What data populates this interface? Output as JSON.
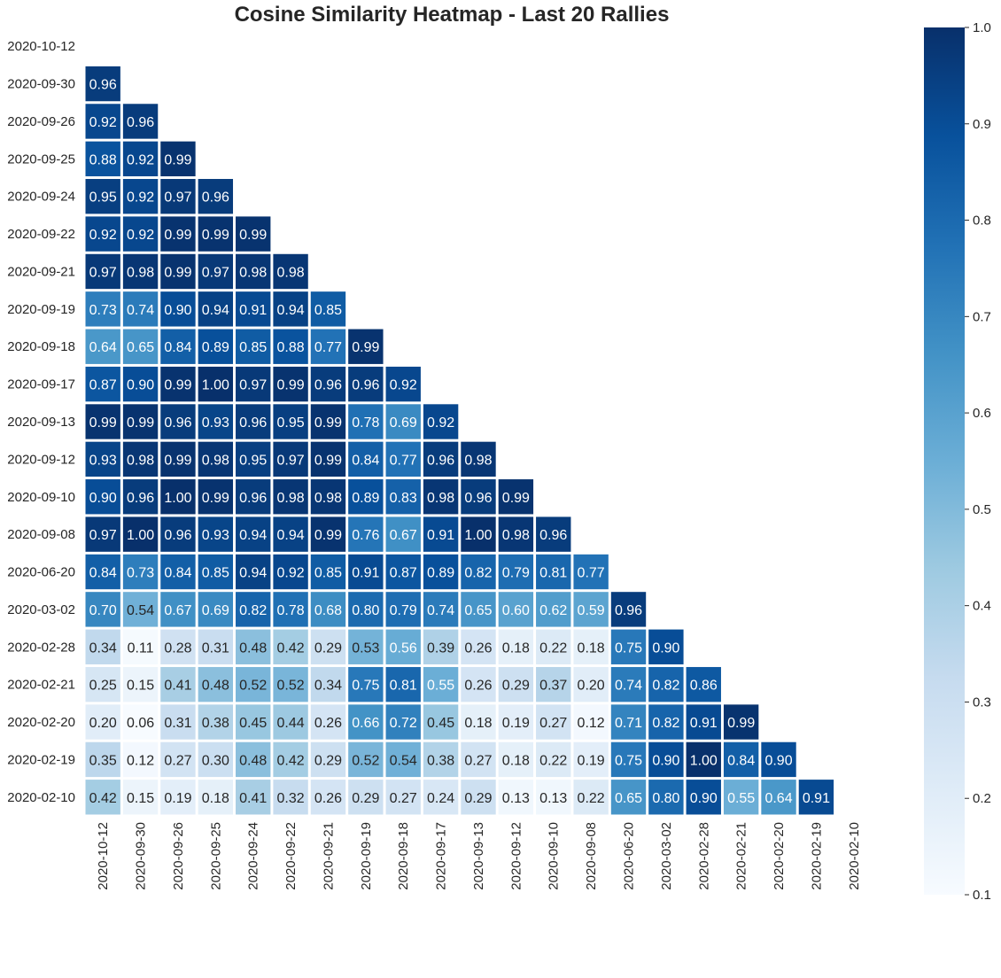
{
  "chart_data": {
    "type": "heatmap",
    "title": "Cosine Similarity Heatmap - Last 20 Rallies",
    "labels": [
      "2020-10-12",
      "2020-09-30",
      "2020-09-26",
      "2020-09-25",
      "2020-09-24",
      "2020-09-22",
      "2020-09-21",
      "2020-09-19",
      "2020-09-18",
      "2020-09-17",
      "2020-09-13",
      "2020-09-12",
      "2020-09-10",
      "2020-09-08",
      "2020-06-20",
      "2020-03-02",
      "2020-02-28",
      "2020-02-21",
      "2020-02-20",
      "2020-02-19",
      "2020-02-10"
    ],
    "mask": "upper-triangle-including-diagonal",
    "values": [
      [],
      [
        0.96
      ],
      [
        0.92,
        0.96
      ],
      [
        0.88,
        0.92,
        0.99
      ],
      [
        0.95,
        0.92,
        0.97,
        0.96
      ],
      [
        0.92,
        0.92,
        0.99,
        0.99,
        0.99
      ],
      [
        0.97,
        0.98,
        0.99,
        0.97,
        0.98,
        0.98
      ],
      [
        0.73,
        0.74,
        0.9,
        0.94,
        0.91,
        0.94,
        0.85
      ],
      [
        0.64,
        0.65,
        0.84,
        0.89,
        0.85,
        0.88,
        0.77,
        0.99
      ],
      [
        0.87,
        0.9,
        0.99,
        1.0,
        0.97,
        0.99,
        0.96,
        0.96,
        0.92
      ],
      [
        0.99,
        0.99,
        0.96,
        0.93,
        0.96,
        0.95,
        0.99,
        0.78,
        0.69,
        0.92
      ],
      [
        0.93,
        0.98,
        0.99,
        0.98,
        0.95,
        0.97,
        0.99,
        0.84,
        0.77,
        0.96,
        0.98
      ],
      [
        0.9,
        0.96,
        1.0,
        0.99,
        0.96,
        0.98,
        0.98,
        0.89,
        0.83,
        0.98,
        0.96,
        0.99
      ],
      [
        0.97,
        1.0,
        0.96,
        0.93,
        0.94,
        0.94,
        0.99,
        0.76,
        0.67,
        0.91,
        1.0,
        0.98,
        0.96
      ],
      [
        0.84,
        0.73,
        0.84,
        0.85,
        0.94,
        0.92,
        0.85,
        0.91,
        0.87,
        0.89,
        0.82,
        0.79,
        0.81,
        0.77
      ],
      [
        0.7,
        0.54,
        0.67,
        0.69,
        0.82,
        0.78,
        0.68,
        0.8,
        0.79,
        0.74,
        0.65,
        0.6,
        0.62,
        0.59,
        0.96
      ],
      [
        0.34,
        0.11,
        0.28,
        0.31,
        0.48,
        0.42,
        0.29,
        0.53,
        0.56,
        0.39,
        0.26,
        0.18,
        0.22,
        0.18,
        0.75,
        0.9
      ],
      [
        0.25,
        0.15,
        0.41,
        0.48,
        0.52,
        0.52,
        0.34,
        0.75,
        0.81,
        0.55,
        0.26,
        0.29,
        0.37,
        0.2,
        0.74,
        0.82,
        0.86
      ],
      [
        0.2,
        0.06,
        0.31,
        0.38,
        0.45,
        0.44,
        0.26,
        0.66,
        0.72,
        0.45,
        0.18,
        0.19,
        0.27,
        0.12,
        0.71,
        0.82,
        0.91,
        0.99
      ],
      [
        0.35,
        0.12,
        0.27,
        0.3,
        0.48,
        0.42,
        0.29,
        0.52,
        0.54,
        0.38,
        0.27,
        0.18,
        0.22,
        0.19,
        0.75,
        0.9,
        1.0,
        0.84,
        0.9
      ],
      [
        0.42,
        0.15,
        0.19,
        0.18,
        0.41,
        0.32,
        0.26,
        0.29,
        0.27,
        0.24,
        0.29,
        0.13,
        0.13,
        0.22,
        0.65,
        0.8,
        0.9,
        0.55,
        0.64,
        0.91
      ]
    ],
    "value_format": "2 decimals",
    "colormap": "Blues",
    "vmin": 0.1,
    "vmax": 1.0,
    "colorbar": {
      "ticks": [
        0.1,
        0.2,
        0.3,
        0.4,
        0.5,
        0.6,
        0.7,
        0.8,
        0.9,
        1.0
      ],
      "tick_labels": [
        "0.1",
        "0.2",
        "0.3",
        "0.4",
        "0.5",
        "0.6",
        "0.7",
        "0.8",
        "0.9",
        "1.0"
      ],
      "placement": "right"
    },
    "grid": false,
    "cell_border_color": "#ffffff"
  },
  "colors": {
    "text_dark": "#262626",
    "text_light": "#ffffff",
    "cell_border": "#ffffff",
    "blues_stops": [
      "#f7fbff",
      "#deebf7",
      "#c6dbef",
      "#9ecae1",
      "#6baed6",
      "#4292c6",
      "#2171b5",
      "#08519c",
      "#08306b"
    ]
  }
}
